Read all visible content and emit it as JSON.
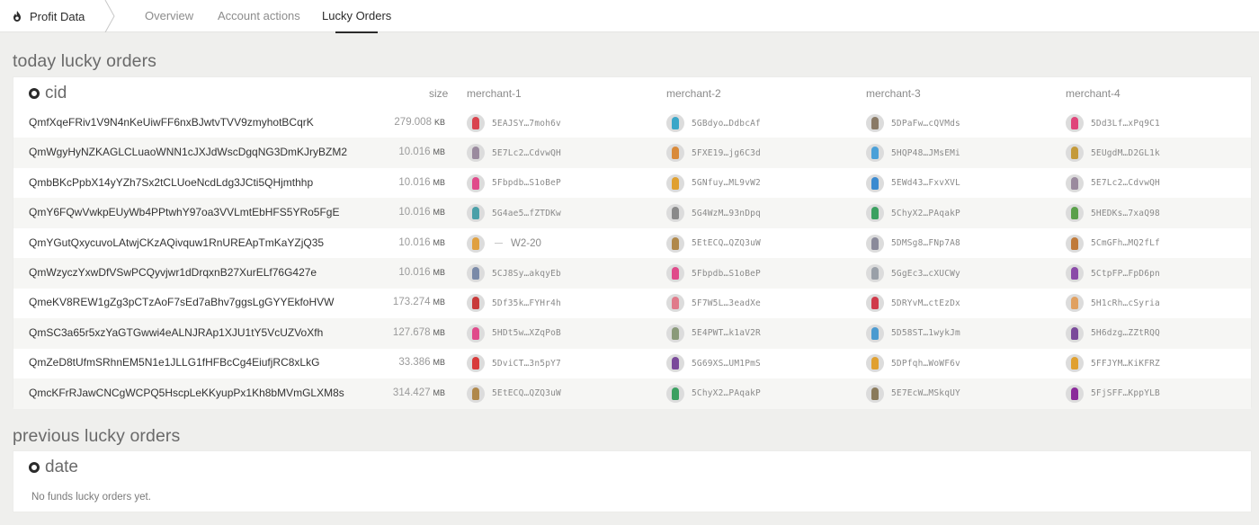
{
  "nav": {
    "brand": "Profit Data",
    "tabs": [
      {
        "label": "Overview",
        "active": false
      },
      {
        "label": "Account actions",
        "active": false
      },
      {
        "label": "Lucky Orders",
        "active": true
      }
    ]
  },
  "today": {
    "title": "today lucky orders",
    "key_label": "cid",
    "columns": {
      "size": "size",
      "m1": "merchant-1",
      "m2": "merchant-2",
      "m3": "merchant-3",
      "m4": "merchant-4"
    },
    "rows": [
      {
        "cid": "QmfXqeFRiv1V9N4nKeUiwFF6nxBJwtvTVV9zmyhotBCqrK",
        "size": "279.008",
        "unit": "KB",
        "m": [
          {
            "addr": "5EAJSY…7moh6v",
            "color": "#d9434e"
          },
          {
            "addr": "5GBdyo…DdbcAf",
            "color": "#3aa6c8"
          },
          {
            "addr": "5DPaFw…cQVMds",
            "color": "#8a7a66"
          },
          {
            "addr": "5Dd3Lf…xPq9C1",
            "color": "#e0457a"
          }
        ]
      },
      {
        "cid": "QmWgyHyNZKAGLCLuaoWNN1cJXJdWscDgqNG3DmKJryBZM2",
        "size": "10.016",
        "unit": "MB",
        "m": [
          {
            "addr": "5E7Lc2…CdvwQH",
            "color": "#9a8a9e"
          },
          {
            "addr": "5FXE19…jg6C3d",
            "color": "#d98a3a"
          },
          {
            "addr": "5HQP48…JMsEMi",
            "color": "#4aa0d8"
          },
          {
            "addr": "5EUgdM…D2GL1k",
            "color": "#c49a3a"
          }
        ]
      },
      {
        "cid": "QmbBKcPpbX14yYZh7Sx2tCLUoeNcdLdg3JCti5QHjmthhp",
        "size": "10.016",
        "unit": "MB",
        "m": [
          {
            "addr": "5Fbpdb…S1oBeP",
            "color": "#e04a8a"
          },
          {
            "addr": "5GNfuy…ML9vW2",
            "color": "#e0a030"
          },
          {
            "addr": "5EWd43…FxvXVL",
            "color": "#3a8ad0"
          },
          {
            "addr": "5E7Lc2…CdvwQH",
            "color": "#9a8a9e"
          }
        ]
      },
      {
        "cid": "QmY6FQwVwkpEUyWb4PPtwhY97oa3VVLmtEbHFS5YRo5FgE",
        "size": "10.016",
        "unit": "MB",
        "m": [
          {
            "addr": "5G4ae5…fZTDKw",
            "color": "#4aa0a8"
          },
          {
            "addr": "5G4WzM…93nDpq",
            "color": "#8a8a8a"
          },
          {
            "addr": "5ChyX2…PAqakP",
            "color": "#3aa060"
          },
          {
            "addr": "5HEDKs…7xaQ98",
            "color": "#5aa04a"
          }
        ]
      },
      {
        "cid": "QmYGutQxycuvoLAtwjCKzAQivquw1RnUREApTmKaYZjQ35",
        "size": "10.016",
        "unit": "MB",
        "m": [
          {
            "addr": "W2-20",
            "color": "#e0a040",
            "nick": true
          },
          {
            "addr": "5EtECQ…QZQ3uW",
            "color": "#b0884a"
          },
          {
            "addr": "5DMSg8…FNp7A8",
            "color": "#8a8a9a"
          },
          {
            "addr": "5CmGFh…MQ2fLf",
            "color": "#c07a3a"
          }
        ]
      },
      {
        "cid": "QmWzyczYxwDfVSwPCQyvjwr1dDrqxnB27XurELf76G427e",
        "size": "10.016",
        "unit": "MB",
        "m": [
          {
            "addr": "5CJ8Sy…akqyEb",
            "color": "#7a8aa8"
          },
          {
            "addr": "5Fbpdb…S1oBeP",
            "color": "#e04a8a"
          },
          {
            "addr": "5GgEc3…cXUCWy",
            "color": "#9aa0a8"
          },
          {
            "addr": "5CtpFP…FpD6pn",
            "color": "#8a4aa8"
          }
        ]
      },
      {
        "cid": "QmeKV8REW1gZg3pCTzAoF7sEd7aBhv7ggsLgGYYEkfoHVW",
        "size": "173.274",
        "unit": "MB",
        "m": [
          {
            "addr": "5Df35k…FYHr4h",
            "color": "#c83a3a"
          },
          {
            "addr": "5F7W5L…3eadXe",
            "color": "#e07a8a"
          },
          {
            "addr": "5DRYvM…ctEzDx",
            "color": "#d03a4a"
          },
          {
            "addr": "5H1cRh…cSyria",
            "color": "#e0a060"
          }
        ]
      },
      {
        "cid": "QmSC3a65r5xzYaGTGwwi4eALNJRAp1XJU1tY5VcUZVoXfh",
        "size": "127.678",
        "unit": "MB",
        "m": [
          {
            "addr": "5HDt5w…XZqPoB",
            "color": "#e04a8a"
          },
          {
            "addr": "5E4PWT…k1aV2R",
            "color": "#8a9a7a"
          },
          {
            "addr": "5D58ST…1wykJm",
            "color": "#4a9ad0"
          },
          {
            "addr": "5H6dzg…ZZtRQQ",
            "color": "#7a4a9a"
          }
        ]
      },
      {
        "cid": "QmZeD8tUfmSRhnEM5N1e1JLLG1fHFBcCg4EiufjRC8xLkG",
        "size": "33.386",
        "unit": "MB",
        "m": [
          {
            "addr": "5DviCT…3n5pY7",
            "color": "#d83a3a"
          },
          {
            "addr": "5G69XS…UM1PmS",
            "color": "#7a4a9a"
          },
          {
            "addr": "5DPfqh…WoWF6v",
            "color": "#e0a030"
          },
          {
            "addr": "5FFJYM…KiKFRZ",
            "color": "#e0a030"
          }
        ]
      },
      {
        "cid": "QmcKFrRJawCNCgWCPQ5HscpLeKKyupPx1Kh8bMVmGLXM8s",
        "size": "314.427",
        "unit": "MB",
        "m": [
          {
            "addr": "5EtECQ…QZQ3uW",
            "color": "#b0884a"
          },
          {
            "addr": "5ChyX2…PAqakP",
            "color": "#3aa060"
          },
          {
            "addr": "5E7EcW…MSkqUY",
            "color": "#8a7a5a"
          },
          {
            "addr": "5FjSFF…KppYLB",
            "color": "#8a2a9a"
          }
        ]
      }
    ]
  },
  "previous": {
    "title": "previous lucky orders",
    "key_label": "date",
    "empty_message": "No funds lucky orders yet."
  }
}
